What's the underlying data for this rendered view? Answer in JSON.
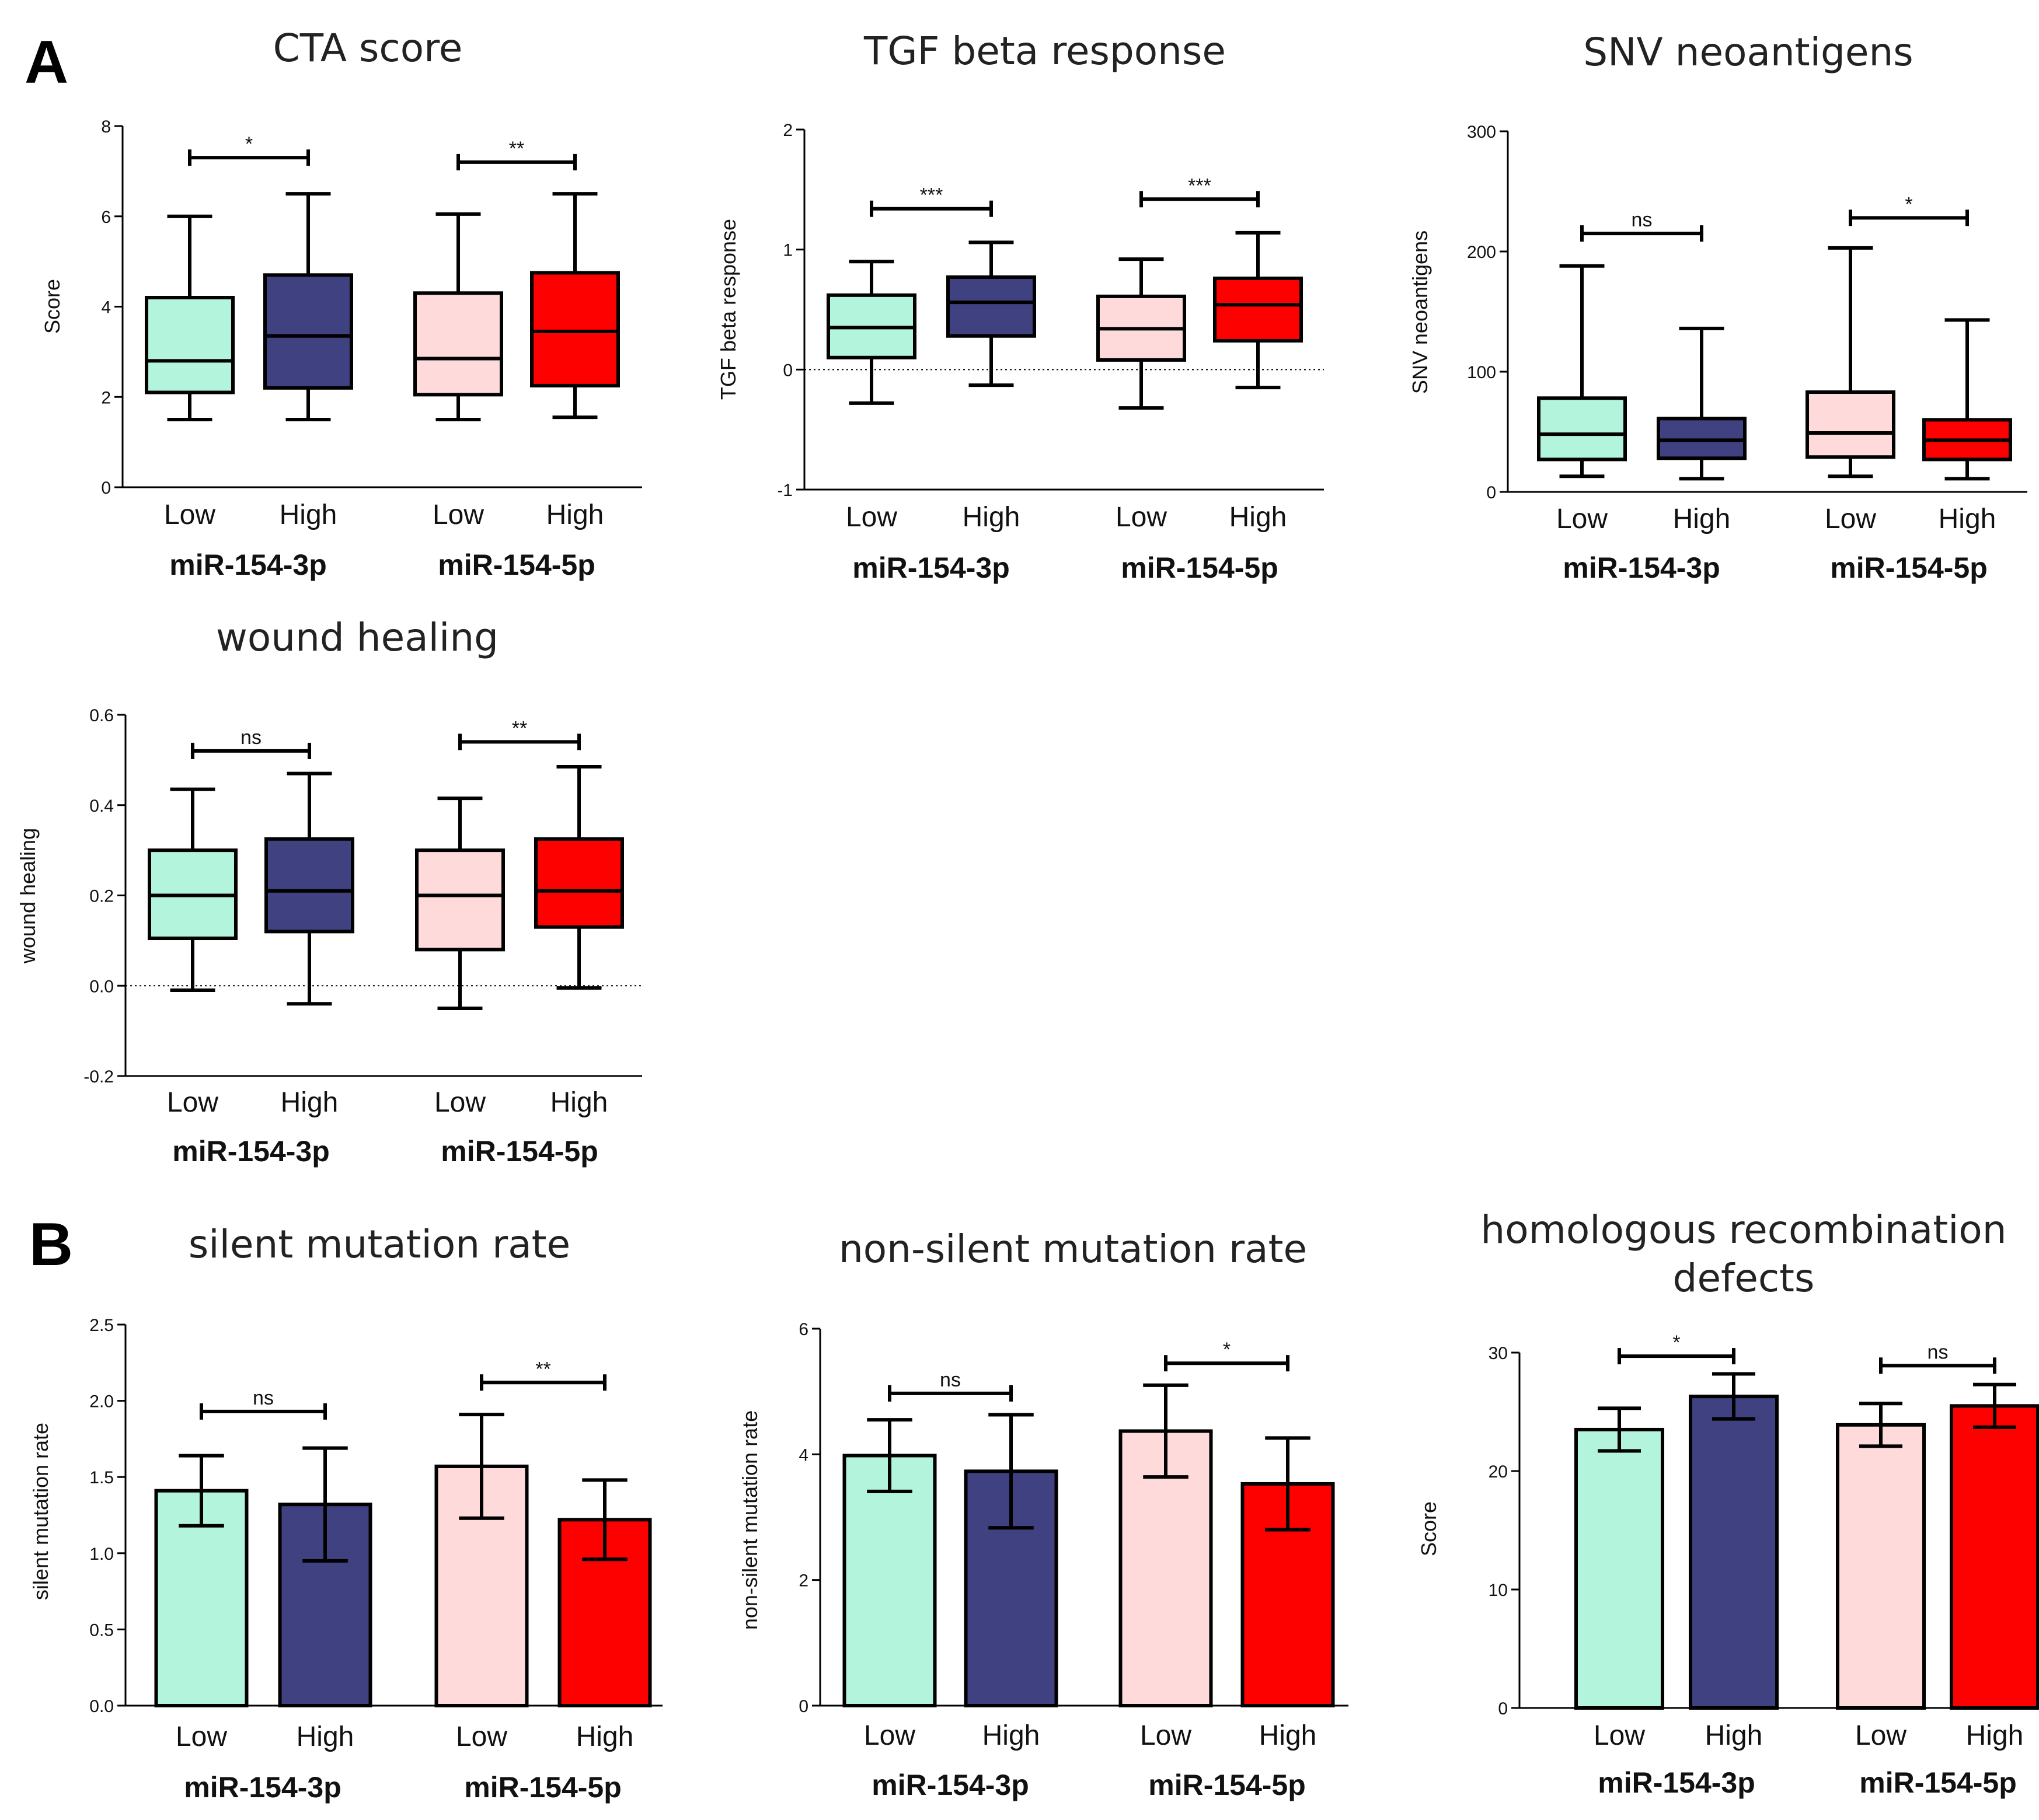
{
  "panels": [
    {
      "letter": "A"
    },
    {
      "letter": "B"
    }
  ],
  "colors": {
    "low_3p": "#b3f5dc",
    "high_3p": "#3f4180",
    "low_5p": "#ffdada",
    "high_5p": "#fd0000"
  },
  "chart_data": [
    {
      "type": "box",
      "panel": "A",
      "title": "CTA score",
      "ylabel": "Score",
      "ylim": [
        0,
        8
      ],
      "yticks": [
        "0",
        "2",
        "4",
        "6",
        "8"
      ],
      "zero_line": false,
      "categories": [
        "Low",
        "High",
        "Low",
        "High"
      ],
      "groups": [
        "miR-154-3p",
        "miR-154-5p"
      ],
      "boxes": [
        {
          "name": "miR-154-3p Low",
          "color": "#b3f5dc",
          "min": 1.5,
          "q1": 2.1,
          "median": 2.8,
          "q3": 4.2,
          "max": 6.0
        },
        {
          "name": "miR-154-3p High",
          "color": "#3f4180",
          "min": 1.5,
          "q1": 2.2,
          "median": 3.35,
          "q3": 4.7,
          "max": 6.5
        },
        {
          "name": "miR-154-5p Low",
          "color": "#ffdada",
          "min": 1.5,
          "q1": 2.05,
          "median": 2.85,
          "q3": 4.3,
          "max": 6.05
        },
        {
          "name": "miR-154-5p High",
          "color": "#fd0000",
          "min": 1.55,
          "q1": 2.25,
          "median": 3.45,
          "q3": 4.75,
          "max": 6.5
        }
      ],
      "significance": [
        {
          "label": "*",
          "pair": [
            0,
            1
          ],
          "y": 7.3
        },
        {
          "label": "**",
          "pair": [
            2,
            3
          ],
          "y": 7.2
        }
      ]
    },
    {
      "type": "box",
      "panel": "A",
      "title": "TGF beta response",
      "ylabel": "TGF beta response",
      "ylim": [
        -1,
        2
      ],
      "yticks": [
        "-1",
        "0",
        "1",
        "2"
      ],
      "zero_line": true,
      "categories": [
        "Low",
        "High",
        "Low",
        "High"
      ],
      "groups": [
        "miR-154-3p",
        "miR-154-5p"
      ],
      "boxes": [
        {
          "name": "miR-154-3p Low",
          "color": "#b3f5dc",
          "min": -0.28,
          "q1": 0.1,
          "median": 0.35,
          "q3": 0.62,
          "max": 0.9
        },
        {
          "name": "miR-154-3p High",
          "color": "#3f4180",
          "min": -0.13,
          "q1": 0.28,
          "median": 0.56,
          "q3": 0.77,
          "max": 1.06
        },
        {
          "name": "miR-154-5p Low",
          "color": "#ffdada",
          "min": -0.32,
          "q1": 0.08,
          "median": 0.34,
          "q3": 0.61,
          "max": 0.92
        },
        {
          "name": "miR-154-5p High",
          "color": "#fd0000",
          "min": -0.15,
          "q1": 0.24,
          "median": 0.54,
          "q3": 0.76,
          "max": 1.14
        }
      ],
      "significance": [
        {
          "label": "***",
          "pair": [
            0,
            1
          ],
          "y": 1.34
        },
        {
          "label": "***",
          "pair": [
            2,
            3
          ],
          "y": 1.42
        }
      ]
    },
    {
      "type": "box",
      "panel": "A",
      "title": "SNV neoantigens",
      "ylabel": "SNV neoantigens",
      "ylim": [
        0,
        300
      ],
      "yticks": [
        "0",
        "100",
        "200",
        "300"
      ],
      "zero_line": false,
      "categories": [
        "Low",
        "High",
        "Low",
        "High"
      ],
      "groups": [
        "miR-154-3p",
        "miR-154-5p"
      ],
      "boxes": [
        {
          "name": "miR-154-3p Low",
          "color": "#b3f5dc",
          "min": 13,
          "q1": 27,
          "median": 48,
          "q3": 78,
          "max": 188
        },
        {
          "name": "miR-154-3p High",
          "color": "#3f4180",
          "min": 11,
          "q1": 28,
          "median": 43,
          "q3": 61,
          "max": 136
        },
        {
          "name": "miR-154-5p Low",
          "color": "#ffdada",
          "min": 13,
          "q1": 29,
          "median": 49,
          "q3": 83,
          "max": 203
        },
        {
          "name": "miR-154-5p High",
          "color": "#fd0000",
          "min": 11,
          "q1": 27,
          "median": 43,
          "q3": 60,
          "max": 143
        }
      ],
      "significance": [
        {
          "label": "ns",
          "pair": [
            0,
            1
          ],
          "y": 215
        },
        {
          "label": "*",
          "pair": [
            2,
            3
          ],
          "y": 228
        }
      ]
    },
    {
      "type": "box",
      "panel": "A",
      "title": "wound healing",
      "ylabel": "wound healing",
      "ylim": [
        -0.2,
        0.6
      ],
      "yticks": [
        "-0.2",
        "0.0",
        "0.2",
        "0.4",
        "0.6"
      ],
      "zero_line": true,
      "categories": [
        "Low",
        "High",
        "Low",
        "High"
      ],
      "groups": [
        "miR-154-3p",
        "miR-154-5p"
      ],
      "boxes": [
        {
          "name": "miR-154-3p Low",
          "color": "#b3f5dc",
          "min": -0.01,
          "q1": 0.105,
          "median": 0.2,
          "q3": 0.3,
          "max": 0.435
        },
        {
          "name": "miR-154-3p High",
          "color": "#3f4180",
          "min": -0.04,
          "q1": 0.12,
          "median": 0.21,
          "q3": 0.325,
          "max": 0.47
        },
        {
          "name": "miR-154-5p Low",
          "color": "#ffdada",
          "min": -0.05,
          "q1": 0.08,
          "median": 0.2,
          "q3": 0.3,
          "max": 0.415
        },
        {
          "name": "miR-154-5p High",
          "color": "#fd0000",
          "min": -0.005,
          "q1": 0.13,
          "median": 0.21,
          "q3": 0.325,
          "max": 0.485
        }
      ],
      "significance": [
        {
          "label": "ns",
          "pair": [
            0,
            1
          ],
          "y": 0.52
        },
        {
          "label": "**",
          "pair": [
            2,
            3
          ],
          "y": 0.54
        }
      ]
    },
    {
      "type": "bar",
      "panel": "B",
      "title": "silent mutation rate",
      "ylabel": "silent mutation rate",
      "ylim": [
        0,
        2.5
      ],
      "yticks": [
        "0.0",
        "0.5",
        "1.0",
        "1.5",
        "2.0",
        "2.5"
      ],
      "categories": [
        "Low",
        "High",
        "Low",
        "High"
      ],
      "groups": [
        "miR-154-3p",
        "miR-154-5p"
      ],
      "bars": [
        {
          "name": "miR-154-3p Low",
          "color": "#b3f5dc",
          "value": 1.41,
          "error": 0.23
        },
        {
          "name": "miR-154-3p High",
          "color": "#3f4180",
          "value": 1.32,
          "error": 0.37
        },
        {
          "name": "miR-154-5p Low",
          "color": "#ffdada",
          "value": 1.57,
          "error": 0.34
        },
        {
          "name": "miR-154-5p High",
          "color": "#fd0000",
          "value": 1.22,
          "error": 0.26
        }
      ],
      "significance": [
        {
          "label": "ns",
          "pair": [
            0,
            1
          ],
          "y": 1.93
        },
        {
          "label": "**",
          "pair": [
            2,
            3
          ],
          "y": 2.12
        }
      ]
    },
    {
      "type": "bar",
      "panel": "B",
      "title": "non-silent mutation rate",
      "ylabel": "non-silent mutation rate",
      "ylim": [
        0,
        6
      ],
      "yticks": [
        "0",
        "2",
        "4",
        "6"
      ],
      "categories": [
        "Low",
        "High",
        "Low",
        "High"
      ],
      "groups": [
        "miR-154-3p",
        "miR-154-5p"
      ],
      "bars": [
        {
          "name": "miR-154-3p Low",
          "color": "#b3f5dc",
          "value": 3.98,
          "error": 0.57
        },
        {
          "name": "miR-154-3p High",
          "color": "#3f4180",
          "value": 3.73,
          "error": 0.9
        },
        {
          "name": "miR-154-5p Low",
          "color": "#ffdada",
          "value": 4.37,
          "error": 0.73
        },
        {
          "name": "miR-154-5p High",
          "color": "#fd0000",
          "value": 3.53,
          "error": 0.73
        }
      ],
      "significance": [
        {
          "label": "ns",
          "pair": [
            0,
            1
          ],
          "y": 4.97
        },
        {
          "label": "*",
          "pair": [
            2,
            3
          ],
          "y": 5.45
        }
      ]
    },
    {
      "type": "bar",
      "panel": "B",
      "title": "homologous recombination",
      "title_line2": "defects",
      "ylabel": "Score",
      "ylim": [
        0,
        30
      ],
      "yticks": [
        "0",
        "10",
        "20",
        "30"
      ],
      "categories": [
        "Low",
        "High",
        "Low",
        "High"
      ],
      "groups": [
        "miR-154-3p",
        "miR-154-5p"
      ],
      "bars": [
        {
          "name": "miR-154-3p Low",
          "color": "#b3f5dc",
          "value": 23.5,
          "error": 1.8
        },
        {
          "name": "miR-154-3p High",
          "color": "#3f4180",
          "value": 26.3,
          "error": 1.9
        },
        {
          "name": "miR-154-5p Low",
          "color": "#ffdada",
          "value": 23.9,
          "error": 1.8
        },
        {
          "name": "miR-154-5p High",
          "color": "#fd0000",
          "value": 25.5,
          "error": 1.8
        }
      ],
      "significance": [
        {
          "label": "*",
          "pair": [
            0,
            1
          ],
          "y": 29.7
        },
        {
          "label": "ns",
          "pair": [
            2,
            3
          ],
          "y": 28.9
        }
      ]
    }
  ]
}
